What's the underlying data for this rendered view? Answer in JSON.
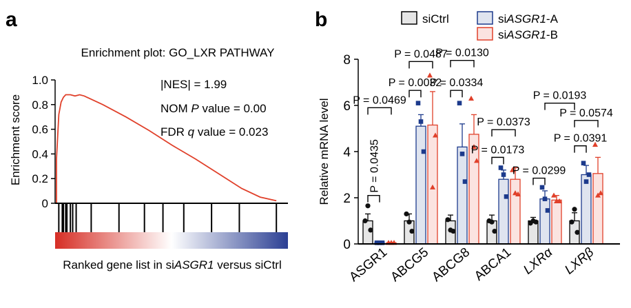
{
  "chart_data": [
    {
      "type": "line",
      "panel_label": "a",
      "title": "Enrichment plot: GO_LXR PATHWAY",
      "ylabel": "Enrichment score",
      "xlabel_parts": [
        "Ranked gene list in si",
        "ASGR1",
        " versus siCtrl"
      ],
      "yticks": [
        "1.0",
        "0.8",
        "0.6",
        "0.4",
        "0.2",
        "0"
      ],
      "ylim": [
        0,
        1.0
      ],
      "stats": {
        "nes": "|NES| = 1.99",
        "nom_parts": [
          "NOM ",
          "P",
          " value = 0.00"
        ],
        "fdr_parts": [
          "FDR ",
          "q",
          " value = 0.023"
        ]
      },
      "series": [
        {
          "color": "#e0402a",
          "points": [
            [
              0.0,
              0.0
            ],
            [
              0.0,
              0.36
            ],
            [
              0.01,
              0.72
            ],
            [
              0.02,
              0.82
            ],
            [
              0.03,
              0.86
            ],
            [
              0.04,
              0.88
            ],
            [
              0.06,
              0.88
            ],
            [
              0.08,
              0.87
            ],
            [
              0.1,
              0.88
            ],
            [
              0.12,
              0.87
            ],
            [
              0.2,
              0.8
            ],
            [
              0.3,
              0.7
            ],
            [
              0.4,
              0.59
            ],
            [
              0.5,
              0.47
            ],
            [
              0.6,
              0.36
            ],
            [
              0.7,
              0.24
            ],
            [
              0.8,
              0.12
            ],
            [
              0.88,
              0.05
            ],
            [
              0.95,
              0.02
            ]
          ]
        }
      ],
      "hits": [
        0.01,
        0.025,
        0.03,
        0.04,
        0.045,
        0.06,
        0.07,
        0.085,
        0.15,
        0.27,
        0.38,
        0.46,
        0.55,
        0.67,
        0.79,
        0.95
      ],
      "colorbar": [
        "#d62e25",
        "#ffffff",
        "#2b3f93"
      ]
    },
    {
      "type": "bar",
      "panel_label": "b",
      "ylabel": "Relative mRNA level",
      "ylim": [
        0,
        8
      ],
      "yticks": [
        "0",
        "2",
        "4",
        "6",
        "8"
      ],
      "categories": [
        "ASGR1",
        "ABCG5",
        "ABCG8",
        "ABCA1",
        "LXRα",
        "LXRβ"
      ],
      "categories_italic": [
        false,
        false,
        false,
        false,
        true,
        true
      ],
      "legend": [
        {
          "parts": [
            "siCtrl"
          ],
          "italic": [
            false
          ]
        },
        {
          "parts": [
            "si",
            "ASGR1",
            "-A"
          ],
          "italic": [
            false,
            true,
            false
          ]
        },
        {
          "parts": [
            "si",
            "ASGR1",
            "-B"
          ],
          "italic": [
            false,
            true,
            false
          ]
        }
      ],
      "series": [
        {
          "fill": "#e6e6e6",
          "stroke": "#000000",
          "marker": "circle",
          "values": [
            1.0,
            1.0,
            1.0,
            1.0,
            1.0,
            1.0
          ],
          "errors": [
            0.3,
            0.3,
            0.25,
            0.25,
            0.15,
            0.35
          ],
          "points": [
            [
              1.0,
              0.6,
              1.65
            ],
            [
              1.3,
              0.55,
              0.95
            ],
            [
              1.05,
              0.55,
              0.6
            ],
            [
              1.0,
              0.55,
              0.95
            ],
            [
              0.9,
              0.95,
              1.0
            ],
            [
              0.95,
              0.5,
              1.5
            ]
          ]
        },
        {
          "fill": "#dfe4ef",
          "stroke": "#1c3a8c",
          "marker": "square",
          "values": [
            0.05,
            5.1,
            4.2,
            2.8,
            1.95,
            3.0
          ],
          "errors": [
            0.02,
            0.5,
            1.0,
            0.4,
            0.35,
            0.4
          ],
          "points": [
            [
              0.05,
              0.05,
              0.05
            ],
            [
              6.1,
              4.0,
              5.3
            ],
            [
              6.1,
              2.7,
              3.9
            ],
            [
              3.3,
              2.05,
              3.0
            ],
            [
              2.45,
              1.45,
              1.95
            ],
            [
              3.5,
              3.0,
              2.7
            ]
          ]
        },
        {
          "fill": "#fbe3e0",
          "stroke": "#e0402a",
          "marker": "triangle",
          "values": [
            0.05,
            5.15,
            4.75,
            2.8,
            1.9,
            3.05
          ],
          "errors": [
            0.02,
            1.45,
            0.85,
            0.5,
            0.2,
            0.7
          ],
          "points": [
            [
              0.05,
              0.05,
              0.05
            ],
            [
              7.3,
              4.7,
              2.45
            ],
            [
              6.3,
              3.6,
              4.2
            ],
            [
              3.2,
              2.15,
              2.2
            ],
            [
              2.1,
              1.85,
              1.85
            ],
            [
              4.3,
              2.2,
              2.1
            ]
          ]
        }
      ],
      "comparisons": [
        {
          "label": "P = 0.0435",
          "cat": 0,
          "from": 0,
          "to": 1,
          "y": 2.1,
          "vertical": true
        },
        {
          "label": "P = 0.0469",
          "cat": 0,
          "from": 0,
          "to": 2,
          "y": 5.9
        },
        {
          "label": "P = 0.0032",
          "cat": 1,
          "from": 0,
          "to": 1,
          "y": 6.65
        },
        {
          "label": "P = 0.0487",
          "cat": 1,
          "from": 0,
          "to": 2,
          "y": 7.9
        },
        {
          "label": "P = 0.0334",
          "cat": 2,
          "from": 0,
          "to": 1,
          "y": 6.65
        },
        {
          "label": "P = 0.0130",
          "cat": 2,
          "from": 0,
          "to": 2,
          "y": 7.95
        },
        {
          "label": "P = 0.0173",
          "cat": 3,
          "from": 0,
          "to": 1,
          "y": 3.75
        },
        {
          "label": "P = 0.0373",
          "cat": 3,
          "from": 0,
          "to": 2,
          "y": 4.95
        },
        {
          "label": "P = 0.0299",
          "cat": 4,
          "from": 0,
          "to": 1,
          "y": 2.85
        },
        {
          "label": "P = 0.0193",
          "cat": 4,
          "from": 1,
          "to": 5,
          "y": 6.1
        },
        {
          "label": "P = 0.0391",
          "cat": 5,
          "from": 0,
          "to": 1,
          "y": 4.25
        },
        {
          "label": "P = 0.0574",
          "cat": 5,
          "from": 0,
          "to": 2,
          "y": 5.35
        }
      ]
    }
  ]
}
